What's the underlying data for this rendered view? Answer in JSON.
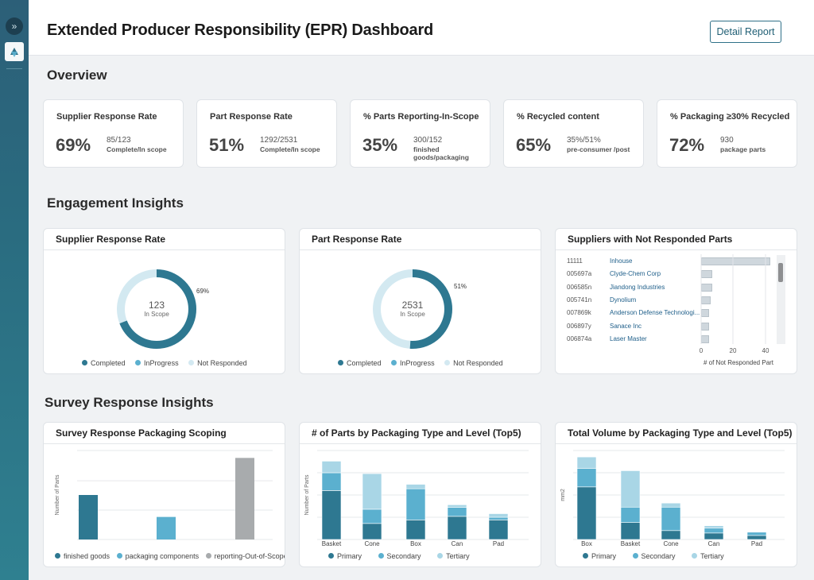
{
  "header": {
    "title": "Extended Producer Responsibility (EPR) Dashboard",
    "detail_button": "Detail Report"
  },
  "rail": {
    "expand_icon": "double-chevron-right-icon",
    "logo": "app-logo-icon"
  },
  "sections": {
    "overview": "Overview",
    "engagement": "Engagement Insights",
    "survey": "Survey Response Insights"
  },
  "kpis": [
    {
      "label": "Supplier Response Rate",
      "value": "69%",
      "detail": "85/123",
      "caption": "Complete/In scope"
    },
    {
      "label": "Part Response Rate",
      "value": "51%",
      "detail": "1292/2531",
      "caption": "Complete/In scope"
    },
    {
      "label": "% Parts Reporting-In-Scope",
      "value": "35%",
      "detail": "300/152",
      "caption": "finished goods/packaging"
    },
    {
      "label": "% Recycled content",
      "value": "65%",
      "detail": "35%/51%",
      "caption": "pre-consumer /post"
    },
    {
      "label": "% Packaging ≥30% Recycled",
      "value": "72%",
      "detail": "930",
      "caption": "package parts"
    }
  ],
  "colors": {
    "completed": "#2e7891",
    "in_progress": "#5bb0cf",
    "not_responded": "#d3e9f1",
    "gray": "#a8abad"
  },
  "supplier_donut": {
    "title": "Supplier Response Rate",
    "center_value": "123",
    "center_label": "In Scope",
    "pct_label": "69%",
    "completed_fraction": 0.69,
    "legend": [
      "Completed",
      "InProgress",
      "Not Responded"
    ]
  },
  "part_donut": {
    "title": "Part Response Rate",
    "center_value": "2531",
    "center_label": "In Scope",
    "pct_label": "51%",
    "completed_fraction": 0.51,
    "legend": [
      "Completed",
      "InProgress",
      "Not Responded"
    ]
  },
  "suppliers_panel": {
    "title": "Suppliers with Not Responded Parts",
    "rows": [
      {
        "id": "11111",
        "name": "Inhouse",
        "count": 43
      },
      {
        "id": "005697a",
        "name": "Clyde-Chem Corp",
        "count": 7
      },
      {
        "id": "006585n",
        "name": "Jiandong Industries",
        "count": 7
      },
      {
        "id": "005741n",
        "name": "Dynolium",
        "count": 6
      },
      {
        "id": "007869k",
        "name": "Anderson Defense Technologi...",
        "count": 5
      },
      {
        "id": "006897y",
        "name": "Sanace Inc",
        "count": 5
      },
      {
        "id": "006874a",
        "name": "Laser Master",
        "count": 5
      }
    ],
    "axis_ticks": [
      "0",
      "20",
      "40"
    ],
    "xlabel": "# of Not Responded Part"
  },
  "chart_data": [
    {
      "type": "bar",
      "title": "Survey Response Packaging Scoping",
      "ylabel": "Number of Parts",
      "categories": [
        "finished goods",
        "packaging components",
        "reporting-Out-of-Scope"
      ],
      "values": [
        300,
        152,
        550
      ],
      "ylim": [
        0,
        600
      ],
      "legend": [
        "finished goods",
        "packaging components",
        "reporting-Out-of-Scope"
      ]
    },
    {
      "type": "bar",
      "stacked": true,
      "title": "# of Parts by Packaging Type and Level (Top5)",
      "ylabel": "Number of Parts",
      "categories": [
        "Basket",
        "Cone",
        "Box",
        "Can",
        "Pad"
      ],
      "series": [
        {
          "name": "Primary",
          "values": [
            55,
            18,
            22,
            26,
            22
          ]
        },
        {
          "name": "Secondary",
          "values": [
            20,
            16,
            35,
            10,
            3
          ]
        },
        {
          "name": "Tertiary",
          "values": [
            13,
            40,
            5,
            3,
            4
          ]
        }
      ],
      "ylim": [
        0,
        100
      ]
    },
    {
      "type": "bar",
      "stacked": true,
      "title": "Total Volume by Packaging Type and Level (Top5)",
      "ylabel": "mm2",
      "categories": [
        "Box",
        "Basket",
        "Cone",
        "Can",
        "Pad"
      ],
      "series": [
        {
          "name": "Primary",
          "values": [
            65,
            21,
            11,
            8,
            5
          ]
        },
        {
          "name": "Secondary",
          "values": [
            23,
            19,
            29,
            6,
            4
          ]
        },
        {
          "name": "Tertiary",
          "values": [
            14,
            45,
            5,
            3,
            0
          ]
        }
      ],
      "ylim": [
        0,
        110
      ]
    }
  ]
}
